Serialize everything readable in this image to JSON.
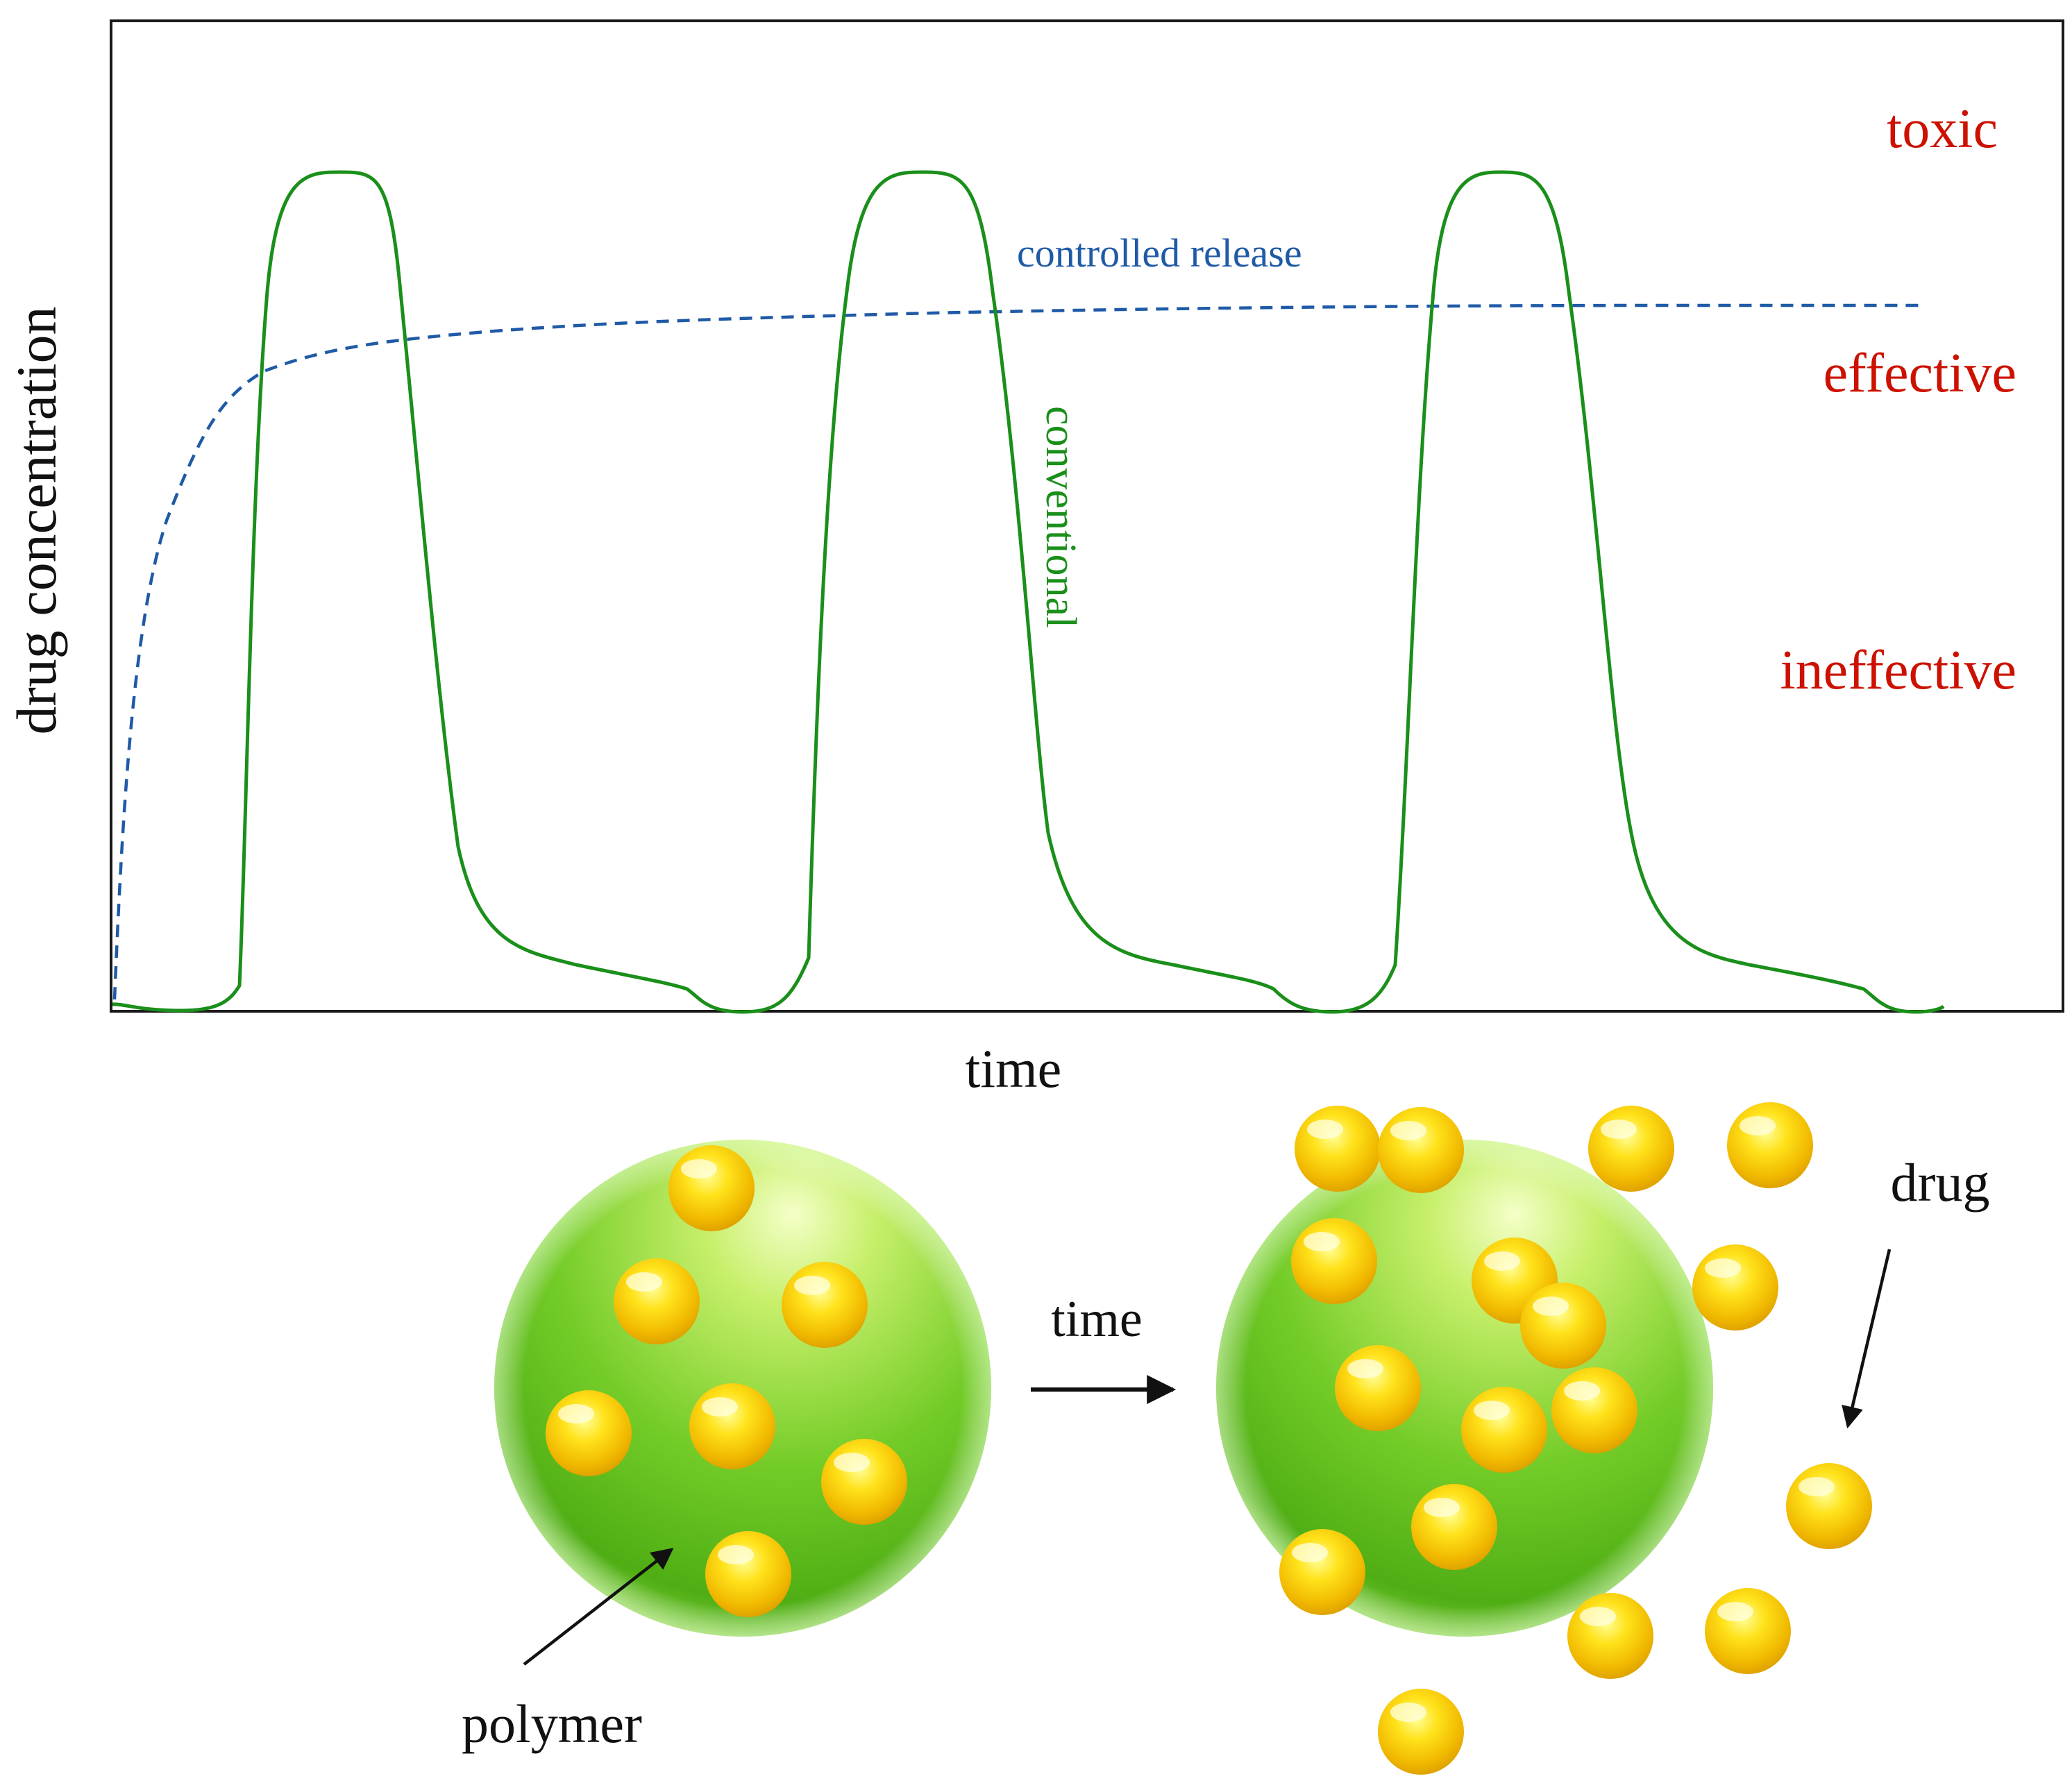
{
  "chart": {
    "ylabel": "drug concentration",
    "xlabel": "time",
    "zones": {
      "toxic": "toxic",
      "effective": "effective",
      "ineffective": "ineffective"
    },
    "series": {
      "controlled": "controlled release",
      "conventional": "conventional"
    },
    "colors": {
      "conventional": "#1a8f1a",
      "controlled": "#1f5aa6",
      "zones": "#cc1100",
      "frame": "#1a1a1a"
    }
  },
  "illustration": {
    "arrow_label": "time",
    "polymer_label": "polymer",
    "drug_label": "drug",
    "colors": {
      "polymer": "#66c61c",
      "drug": "#f2c40c"
    }
  }
}
